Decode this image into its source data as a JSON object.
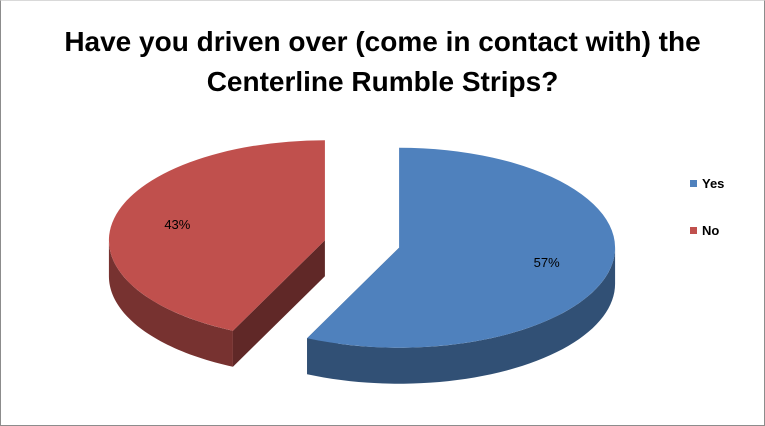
{
  "chart_data": {
    "type": "pie",
    "title_lines": [
      "Have you driven over (come in contact with) the",
      "Centerline Rumble Strips?"
    ],
    "slices": [
      {
        "name": "Yes",
        "value": 57,
        "label": "57%",
        "color": "#4F81BD"
      },
      {
        "name": "No",
        "value": 43,
        "label": "43%",
        "color": "#C0504D"
      }
    ],
    "legend": {
      "placement": "right",
      "entries": [
        "Yes",
        "No"
      ]
    },
    "style": "3d-exploded"
  }
}
